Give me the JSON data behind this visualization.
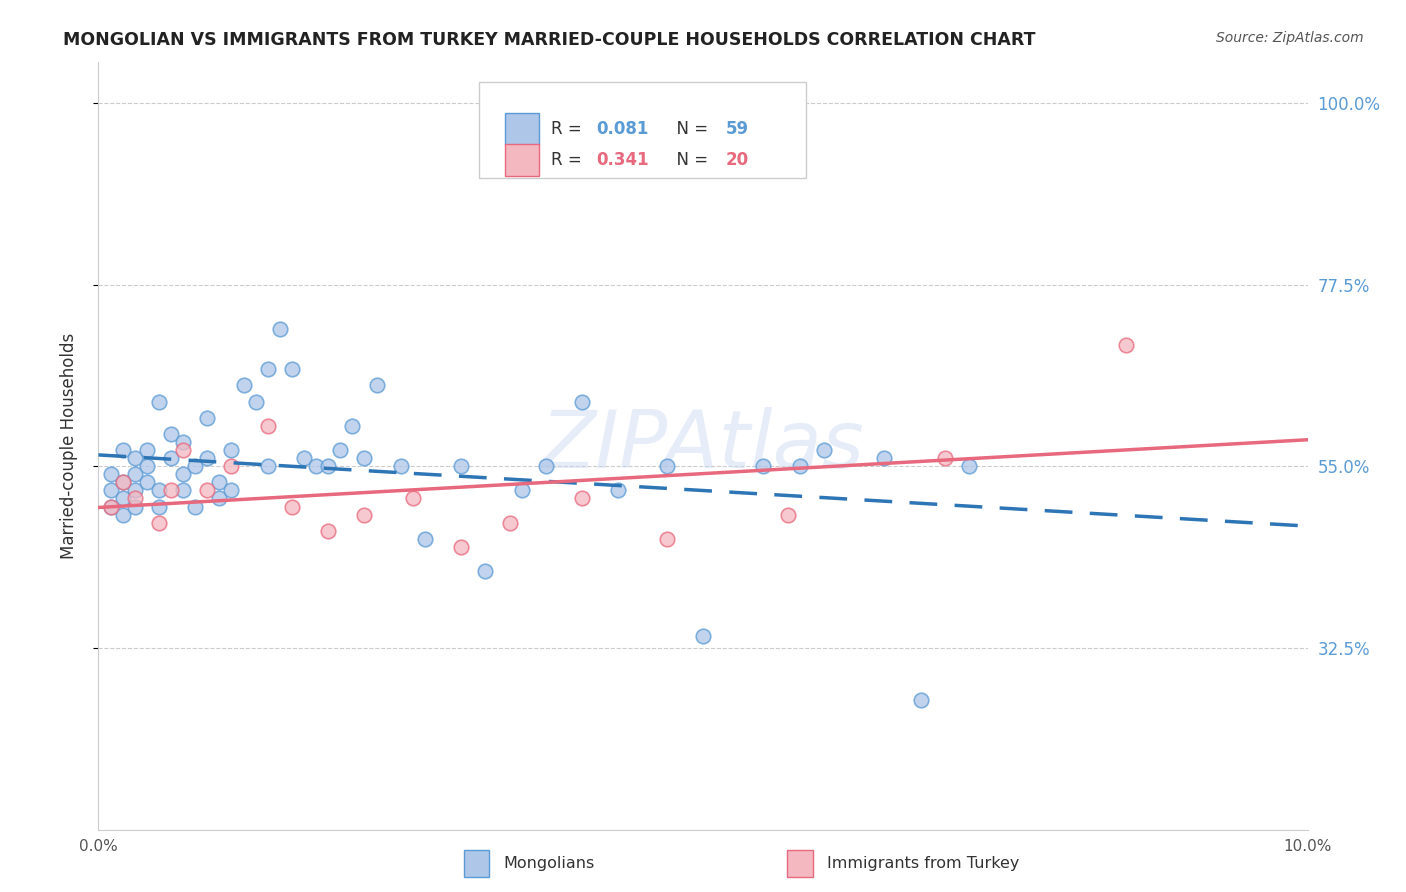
{
  "title": "MONGOLIAN VS IMMIGRANTS FROM TURKEY MARRIED-COUPLE HOUSEHOLDS CORRELATION CHART",
  "source": "Source: ZipAtlas.com",
  "ylabel": "Married-couple Households",
  "xlim": [
    0.0,
    0.1
  ],
  "ylim": [
    0.1,
    1.05
  ],
  "yticks": [
    0.325,
    0.55,
    0.775,
    1.0
  ],
  "ytick_labels": [
    "32.5%",
    "55.0%",
    "77.5%",
    "100.0%"
  ],
  "background_color": "#ffffff",
  "grid_color": "#cccccc",
  "mongolian_color": "#aec6e8",
  "mongolian_edge_color": "#5b9bd5",
  "turkey_color": "#f4b8c1",
  "turkey_edge_color": "#e8697d",
  "trend_mongolian_color": "#2e75b6",
  "trend_turkey_color": "#e8697d",
  "R_mongolian": 0.081,
  "N_mongolian": 59,
  "R_turkey": 0.341,
  "N_turkey": 20,
  "mongolian_x": [
    0.001,
    0.001,
    0.001,
    0.002,
    0.002,
    0.002,
    0.002,
    0.003,
    0.003,
    0.003,
    0.003,
    0.004,
    0.004,
    0.004,
    0.005,
    0.005,
    0.005,
    0.006,
    0.006,
    0.007,
    0.007,
    0.007,
    0.008,
    0.008,
    0.009,
    0.009,
    0.01,
    0.01,
    0.011,
    0.011,
    0.012,
    0.013,
    0.014,
    0.014,
    0.015,
    0.016,
    0.017,
    0.018,
    0.019,
    0.02,
    0.021,
    0.022,
    0.023,
    0.025,
    0.027,
    0.03,
    0.032,
    0.035,
    0.037,
    0.04,
    0.043,
    0.047,
    0.05,
    0.055,
    0.058,
    0.06,
    0.065,
    0.068,
    0.072
  ],
  "mongolian_y": [
    0.52,
    0.54,
    0.5,
    0.57,
    0.53,
    0.51,
    0.49,
    0.56,
    0.52,
    0.54,
    0.5,
    0.53,
    0.55,
    0.57,
    0.5,
    0.52,
    0.63,
    0.56,
    0.59,
    0.52,
    0.54,
    0.58,
    0.5,
    0.55,
    0.56,
    0.61,
    0.51,
    0.53,
    0.52,
    0.57,
    0.65,
    0.63,
    0.55,
    0.67,
    0.72,
    0.67,
    0.56,
    0.55,
    0.55,
    0.57,
    0.6,
    0.56,
    0.65,
    0.55,
    0.46,
    0.55,
    0.42,
    0.52,
    0.55,
    0.63,
    0.52,
    0.55,
    0.34,
    0.55,
    0.55,
    0.57,
    0.56,
    0.26,
    0.55
  ],
  "turkey_x": [
    0.001,
    0.002,
    0.003,
    0.005,
    0.006,
    0.007,
    0.009,
    0.011,
    0.014,
    0.016,
    0.019,
    0.022,
    0.026,
    0.03,
    0.034,
    0.04,
    0.047,
    0.057,
    0.07,
    0.085
  ],
  "turkey_y": [
    0.5,
    0.53,
    0.51,
    0.48,
    0.52,
    0.57,
    0.52,
    0.55,
    0.6,
    0.5,
    0.47,
    0.49,
    0.51,
    0.45,
    0.48,
    0.51,
    0.46,
    0.49,
    0.56,
    0.7
  ],
  "watermark": "ZIPAtlas",
  "marker_size": 110,
  "marker_alpha": 0.75
}
